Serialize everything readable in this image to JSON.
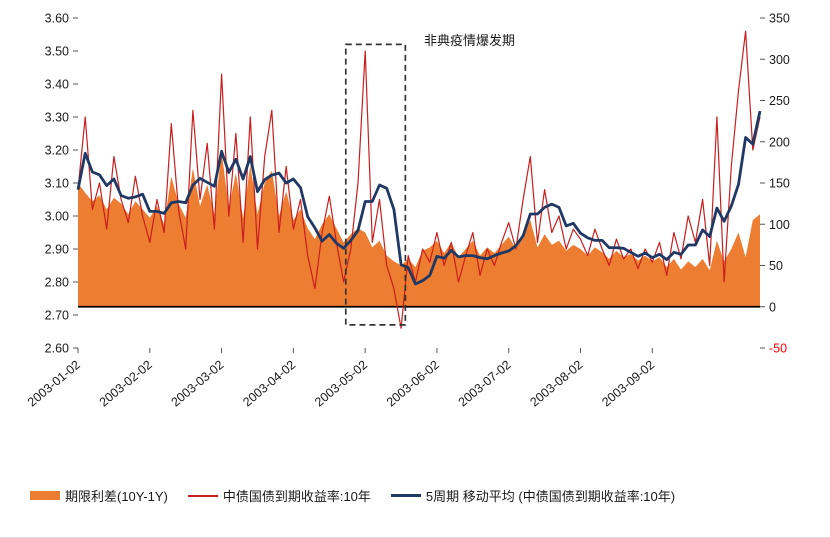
{
  "annotation": {
    "text": "非典疫情爆发期"
  },
  "legend": {
    "items": [
      {
        "label": "期限利差(10Y-1Y)",
        "swatch": "area"
      },
      {
        "label": "中债国债到期收益率:10年",
        "swatch": "thin-line"
      },
      {
        "label": "5周期 移动平均 (中债国债到期收益率:10年)",
        "swatch": "thick-line"
      }
    ]
  },
  "colors": {
    "area": "#ED7D31",
    "yield_line": "#C81E1E",
    "ma_line": "#1F3864",
    "zero_line": "#000000",
    "negative_tick": "#FF0000",
    "axis_text": "#1a1a1a",
    "dashed_box": "#333333"
  },
  "chart_data": {
    "type": "combo",
    "description": "Daily 10Y China government bond yield (left axis, red line), its 5-period moving average (left axis, navy line), and 10Y-1Y term spread in bps (right axis, orange area) for 2003, with SARS outbreak window highlighted by a dashed box.",
    "n_points": 96,
    "x_tick_labels": [
      "2003-01-02",
      "2003-02-02",
      "2003-03-02",
      "2003-04-02",
      "2003-05-02",
      "2003-06-02",
      "2003-07-02",
      "2003-08-02",
      "2003-09-02"
    ],
    "x_tick_indices": [
      0,
      10,
      20,
      30,
      40,
      50,
      60,
      70,
      80
    ],
    "left_axis": {
      "min": 2.6,
      "max": 3.6,
      "step": 0.1,
      "ticks": [
        "3.60",
        "3.50",
        "3.40",
        "3.30",
        "3.20",
        "3.10",
        "3.00",
        "2.90",
        "2.80",
        "2.70",
        "2.60"
      ]
    },
    "right_axis": {
      "min": -50,
      "max": 350,
      "step": 50,
      "ticks": [
        350,
        300,
        250,
        200,
        150,
        100,
        50,
        0,
        -50
      ]
    },
    "zero_line_right_value": 0,
    "annotation_box": {
      "x_index_range": [
        37.3,
        45.6
      ],
      "value_range": [
        2.67,
        3.52
      ]
    },
    "series": [
      {
        "name": "期限利差(10Y-1Y)",
        "type": "area",
        "axis": "right",
        "color": "#ED7D31",
        "values": [
          150,
          138,
          128,
          135,
          118,
          132,
          125,
          112,
          128,
          118,
          108,
          122,
          100,
          158,
          125,
          108,
          168,
          122,
          148,
          112,
          188,
          120,
          162,
          108,
          172,
          112,
          150,
          165,
          110,
          140,
          105,
          118,
          95,
          82,
          100,
          112,
          95,
          78,
          88,
          95,
          90,
          72,
          80,
          62,
          55,
          50,
          58,
          48,
          68,
          72,
          80,
          65,
          78,
          60,
          70,
          80,
          62,
          72,
          65,
          75,
          85,
          70,
          90,
          105,
          72,
          88,
          75,
          80,
          68,
          75,
          70,
          62,
          72,
          66,
          58,
          68,
          60,
          64,
          56,
          62,
          55,
          60,
          48,
          58,
          45,
          55,
          48,
          58,
          44,
          80,
          55,
          70,
          90,
          60,
          105,
          112
        ]
      },
      {
        "name": "中债国债到期收益率:10年",
        "type": "line",
        "axis": "left",
        "color": "#C81E1E",
        "values": [
          3.08,
          3.3,
          3.02,
          3.1,
          2.96,
          3.18,
          3.05,
          2.98,
          3.12,
          3.0,
          2.92,
          3.05,
          2.95,
          3.28,
          3.02,
          2.9,
          3.32,
          3.05,
          3.22,
          2.96,
          3.43,
          3.0,
          3.25,
          2.92,
          3.3,
          2.9,
          3.18,
          3.32,
          2.95,
          3.15,
          2.96,
          3.05,
          2.88,
          2.78,
          2.95,
          3.06,
          2.92,
          2.8,
          2.9,
          3.1,
          3.5,
          2.92,
          3.05,
          2.85,
          2.78,
          2.66,
          2.88,
          2.8,
          2.9,
          2.86,
          2.95,
          2.85,
          2.92,
          2.8,
          2.88,
          2.95,
          2.82,
          2.9,
          2.85,
          2.92,
          2.98,
          2.9,
          3.05,
          3.18,
          2.92,
          3.08,
          2.95,
          3.0,
          2.9,
          2.96,
          2.93,
          2.88,
          2.96,
          2.9,
          2.85,
          2.93,
          2.87,
          2.9,
          2.84,
          2.9,
          2.86,
          2.92,
          2.82,
          2.95,
          2.87,
          3.0,
          2.92,
          3.05,
          2.85,
          3.3,
          2.8,
          3.15,
          3.38,
          3.56,
          3.2,
          3.3
        ]
      },
      {
        "name": "5周期 移动平均 (中债国债到期收益率:10年)",
        "type": "line",
        "axis": "left",
        "color": "#1F3864",
        "derived": "moving_average_5_of_previous_series"
      }
    ]
  }
}
